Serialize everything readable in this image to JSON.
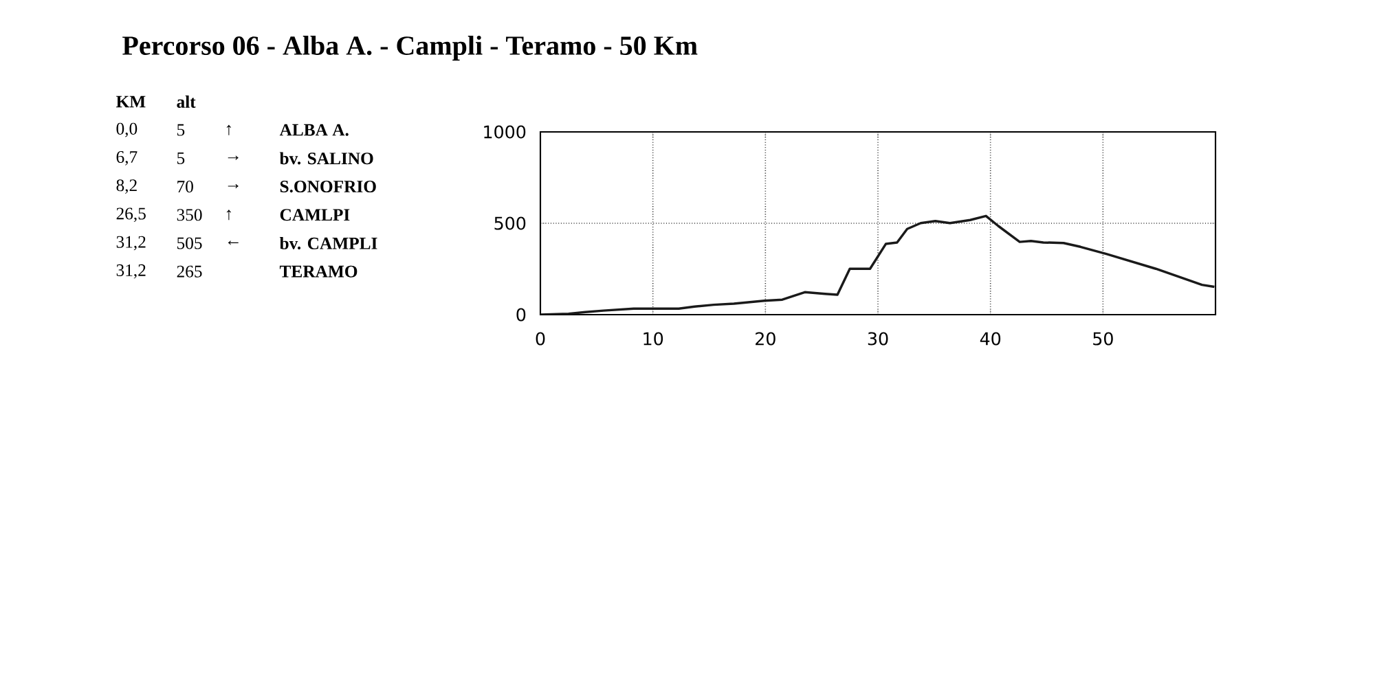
{
  "chart_data": {
    "type": "line",
    "title": "Percorso 06 - Alba A. - Campli - Teramo - 50 Km",
    "annotations": [
      "KM",
      "alt",
      "0,0",
      "5",
      "↑",
      "ALBA A.",
      "6,7",
      "5",
      "→",
      "bv. SALINO",
      "8,2",
      "70",
      "→",
      "S.ONOFRIO",
      "26,5",
      "350",
      "↑",
      "CAMLPI",
      "31,2",
      "505",
      "←",
      "bv. CAMPLI",
      "31,2",
      "265",
      "TERAMO"
    ],
    "x": [
      0,
      2.5,
      4.0,
      5.6,
      8.3,
      12.3,
      13.7,
      15.4,
      17.2,
      19.9,
      21.5,
      23.5,
      25.3,
      26.4,
      27.5,
      29.3,
      30.7,
      31.7,
      32.6,
      33.8,
      35.1,
      36.4,
      38.2,
      39.6,
      40.7,
      42.6,
      43.6,
      44.7,
      46.5,
      48.0,
      50.3,
      54.7,
      58.8,
      59.9
    ],
    "series": [
      {
        "color": "#1a1a1a",
        "line_style": "solid",
        "values": [
          0,
          5,
          14,
          22,
          33,
          33,
          44,
          54,
          60,
          76,
          82,
          123,
          114,
          109,
          251,
          251,
          387,
          395,
          469,
          501,
          512,
          501,
          518,
          540,
          485,
          398,
          403,
          395,
          392,
          371,
          332,
          251,
          163,
          152
        ]
      }
    ],
    "xlim": [
      0,
      60
    ],
    "ylim": [
      0,
      1000
    ],
    "xticks": [
      0,
      10,
      20,
      30,
      40,
      50
    ],
    "yticks": [
      0,
      500,
      1000
    ],
    "grid": true
  }
}
